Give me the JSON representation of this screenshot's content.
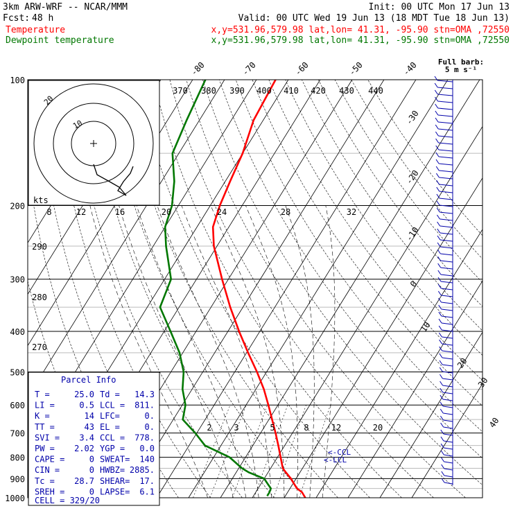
{
  "header": {
    "model": "3km ARW-WRF -- NCAR/MMM",
    "init": "Init: 00 UTC Mon 17 Jun 13",
    "fcst_label": "Fcst:",
    "fcst_value": "48 h",
    "valid": "Valid: 00 UTC Wed 19 Jun 13 (18 MDT Tue 18 Jun 13)",
    "temp_label": "Temperature",
    "temp_info": "x,y=531.96,579.98   lat,lon= 41.31, -95.90   stn=OMA ,72550",
    "dew_label": "Dewpoint temperature",
    "dew_info": "x,y=531.96,579.98   lat,lon= 41.31, -95.90   stn=OMA ,72550"
  },
  "barb_legend": {
    "line1": "Full barb:",
    "line2": "5 m s⁻¹"
  },
  "hodograph": {
    "units": "kts",
    "ring_labels": [
      "10",
      "20"
    ],
    "axis_labels": [
      "8",
      "12",
      "16",
      "20",
      "24",
      "28",
      "32"
    ]
  },
  "parcel_info": {
    "title": "Parcel Info",
    "rows": [
      [
        "T  =",
        "25.0",
        "Td =",
        "14.3"
      ],
      [
        "LI =",
        "0.5",
        "LCL =",
        "811."
      ],
      [
        "K  =",
        "14",
        "LFC=",
        "0."
      ],
      [
        "TT =",
        "43",
        "EL =",
        "0."
      ],
      [
        "SVI =",
        "3.4",
        "CCL =",
        "778."
      ],
      [
        "PW =",
        "2.02",
        "YGP =",
        "0.0"
      ],
      [
        "CAPE =",
        "0",
        "SWEAT=",
        "140"
      ],
      [
        "CIN =",
        "0",
        "HWBZ=",
        "2885."
      ],
      [
        "Tc =",
        "28.7",
        "SHEAR=",
        "17."
      ],
      [
        "SREH =",
        "0",
        "LAPSE=",
        "6.1"
      ]
    ],
    "cell": "CELL = 329/20"
  },
  "level_markers": {
    "ccl": "<-CCL",
    "lcl": "<-LCL"
  },
  "chart_data": {
    "type": "line",
    "title": "",
    "y_axis": "pressure (hPa), log scale",
    "ylim": [
      1000,
      100
    ],
    "pressure_ticks": [
      100,
      200,
      300,
      400,
      500,
      600,
      700,
      800,
      900,
      1000
    ],
    "isotherm_labels_top": [
      -80,
      -70,
      -60,
      -50,
      -40
    ],
    "isotherm_labels_right": [
      -30,
      -20,
      -10,
      0,
      10,
      20,
      30,
      40
    ],
    "theta_labels": [
      370,
      380,
      390,
      400,
      410,
      420,
      430,
      440
    ],
    "theta_labels_left": [
      290,
      280,
      270
    ],
    "mixing_ratio_labels": [
      "2",
      "3",
      "5",
      "8",
      "12",
      "20"
    ],
    "series": [
      {
        "name": "Temperature",
        "color": "#ff0000",
        "p": [
          1000,
          970,
          950,
          925,
          900,
          870,
          850,
          800,
          750,
          700,
          650,
          600,
          550,
          500,
          450,
          400,
          350,
          300,
          250,
          225,
          200,
          175,
          150,
          125,
          100
        ],
        "t": [
          26.6,
          24.5,
          22.2,
          20.3,
          18.4,
          15.6,
          13.8,
          11.0,
          8.0,
          4.7,
          1.0,
          -3.0,
          -7.5,
          -13.0,
          -19.5,
          -26.5,
          -34.0,
          -42.0,
          -51.0,
          -55.0,
          -57.0,
          -58.5,
          -60.0,
          -63.0,
          -64.0
        ]
      },
      {
        "name": "Dewpoint temperature",
        "color": "#007700",
        "p": [
          990,
          970,
          950,
          925,
          900,
          870,
          850,
          800,
          750,
          700,
          650,
          600,
          550,
          500,
          450,
          400,
          350,
          300,
          250,
          225,
          200,
          175,
          150,
          125,
          100
        ],
        "t": [
          14.3,
          14.3,
          14.0,
          12.0,
          10.0,
          4.0,
          1.0,
          -5.0,
          -15.0,
          -20.5,
          -27.0,
          -29.0,
          -33.0,
          -36.0,
          -41.0,
          -48.0,
          -56.0,
          -58.0,
          -66.0,
          -70.0,
          -72.0,
          -76.0,
          -82.0,
          -84.0,
          -86.0
        ]
      }
    ]
  }
}
